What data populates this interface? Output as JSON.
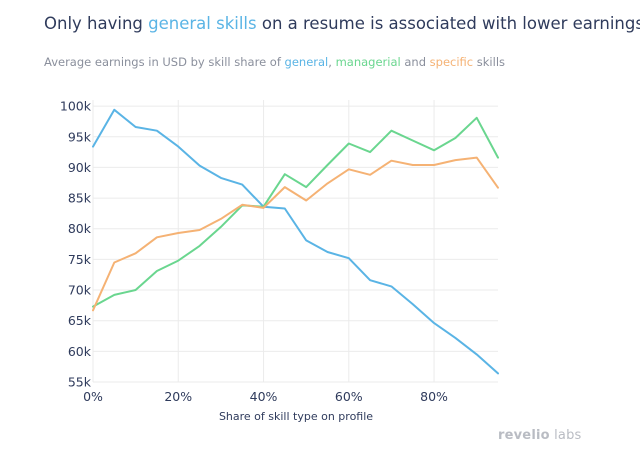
{
  "title": {
    "pre": "Only having ",
    "highlight": "general skills",
    "post": " on a resume is associated with lower earnings"
  },
  "subtitle": {
    "pre": "Average earnings in USD by skill share of ",
    "general": "general",
    "sep": ", ",
    "managerial": "managerial",
    "and": " and ",
    "specific": "specific",
    "post": " skills"
  },
  "colors": {
    "general": "#5ab4e5",
    "managerial": "#6ad68f",
    "specific": "#f5b274",
    "text": "#2f3b5c",
    "subtext": "#8a8f9c",
    "grid": "#ebebeb",
    "logo": "#b9bcc3"
  },
  "logo": {
    "pre": "revel",
    "mid": "io",
    "post": " labs"
  },
  "chart_data": {
    "type": "line",
    "title": "Only having general skills on a resume is associated with lower earnings",
    "subtitle": "Average earnings in USD by skill share of general, managerial and specific skills",
    "xlabel": "Share of skill type on profile",
    "ylabel": "",
    "xlim": [
      0,
      95
    ],
    "ylim": [
      55,
      101
    ],
    "grid": true,
    "legend": "none (colored words in subtitle)",
    "x_ticks": [
      0,
      20,
      40,
      60,
      80
    ],
    "x_tick_labels": [
      "0%",
      "20%",
      "40%",
      "60%",
      "80%"
    ],
    "y_ticks": [
      55,
      60,
      65,
      70,
      75,
      80,
      85,
      90,
      95,
      100
    ],
    "y_tick_labels": [
      "55k",
      "60k",
      "65k",
      "70k",
      "75k",
      "80k",
      "85k",
      "90k",
      "95k",
      "100k"
    ],
    "x": [
      0,
      5,
      10,
      15,
      20,
      25,
      30,
      35,
      40,
      45,
      50,
      55,
      60,
      65,
      70,
      75,
      80,
      85,
      90,
      95
    ],
    "series": [
      {
        "name": "general",
        "color": "#5ab4e5",
        "values": [
          93.4,
          99.4,
          96.6,
          96.0,
          93.4,
          90.3,
          88.3,
          87.2,
          83.6,
          83.3,
          78.1,
          76.2,
          75.2,
          71.6,
          70.6,
          67.7,
          64.6,
          62.2,
          59.5,
          56.4
        ]
      },
      {
        "name": "managerial",
        "color": "#6ad68f",
        "values": [
          67.3,
          69.2,
          70.0,
          73.1,
          74.8,
          77.2,
          80.3,
          83.8,
          83.6,
          88.9,
          86.8,
          90.4,
          93.9,
          92.5,
          96.0,
          94.4,
          92.8,
          94.8,
          98.1,
          91.6
        ]
      },
      {
        "name": "specific",
        "color": "#f5b274",
        "values": [
          66.7,
          74.5,
          76.0,
          78.6,
          79.3,
          79.8,
          81.6,
          83.9,
          83.4,
          86.8,
          84.6,
          87.4,
          89.7,
          88.8,
          91.1,
          90.4,
          90.4,
          91.2,
          91.6,
          86.7
        ]
      }
    ]
  }
}
